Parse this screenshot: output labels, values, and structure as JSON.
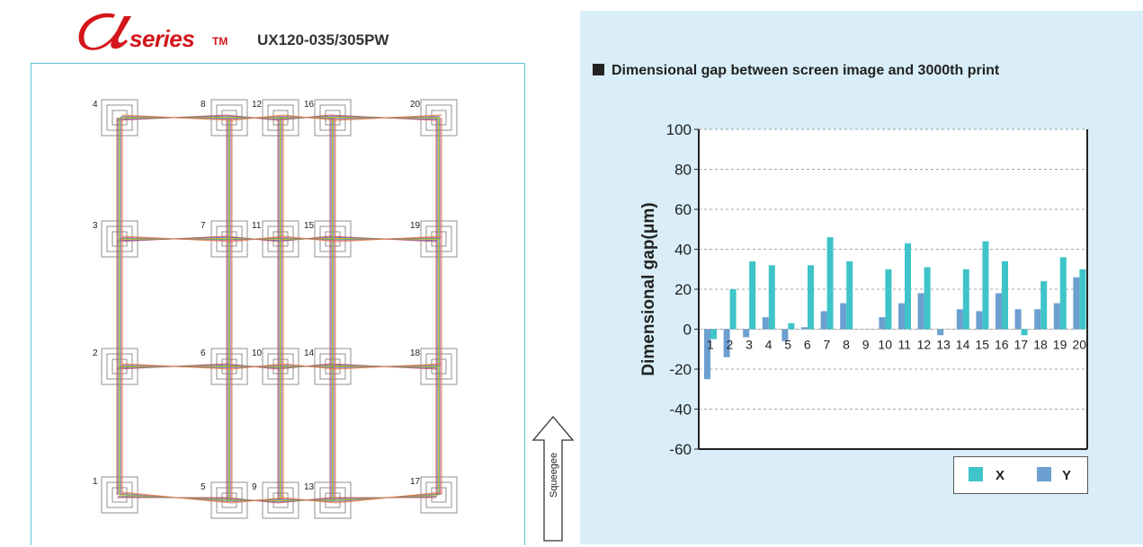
{
  "header": {
    "logo_mark": "α",
    "logo_series": "series",
    "logo_tm": "TM",
    "model": "UX120-035/305PW"
  },
  "layout": {
    "point_labels": [
      "1",
      "2",
      "3",
      "4",
      "5",
      "6",
      "7",
      "8",
      "9",
      "10",
      "11",
      "12",
      "13",
      "14",
      "15",
      "16",
      "17",
      "18",
      "19",
      "20"
    ],
    "squeegee_label": "Squeegee"
  },
  "colors": {
    "chart_bg": "#d9eef8",
    "series_x": "#3ec4c9",
    "series_y": "#6d9fd0",
    "brand_red": "#d4151b",
    "panel_border": "#5bc3d8"
  },
  "chart_data": {
    "type": "bar",
    "title": "Dimensional gap between screen image and 3000th print",
    "xlabel": "",
    "ylabel": "Dimensional gap(μm)",
    "ylim": [
      -60,
      100
    ],
    "yticks": [
      100,
      80,
      60,
      40,
      20,
      0,
      -20,
      -40,
      -60
    ],
    "grid": true,
    "legend": "bottom-right",
    "categories": [
      "1",
      "2",
      "3",
      "4",
      "5",
      "6",
      "7",
      "8",
      "9",
      "10",
      "11",
      "12",
      "13",
      "14",
      "15",
      "16",
      "17",
      "18",
      "19",
      "20"
    ],
    "series": [
      {
        "name": "X",
        "values": [
          -5,
          20,
          34,
          32,
          3,
          32,
          46,
          34,
          0,
          30,
          43,
          31,
          0,
          30,
          44,
          34,
          -3,
          24,
          36,
          30
        ]
      },
      {
        "name": "Y",
        "values": [
          -25,
          -14,
          -4,
          6,
          -6,
          1,
          9,
          13,
          0,
          6,
          13,
          18,
          -3,
          10,
          9,
          18,
          10,
          10,
          13,
          26
        ]
      }
    ]
  }
}
